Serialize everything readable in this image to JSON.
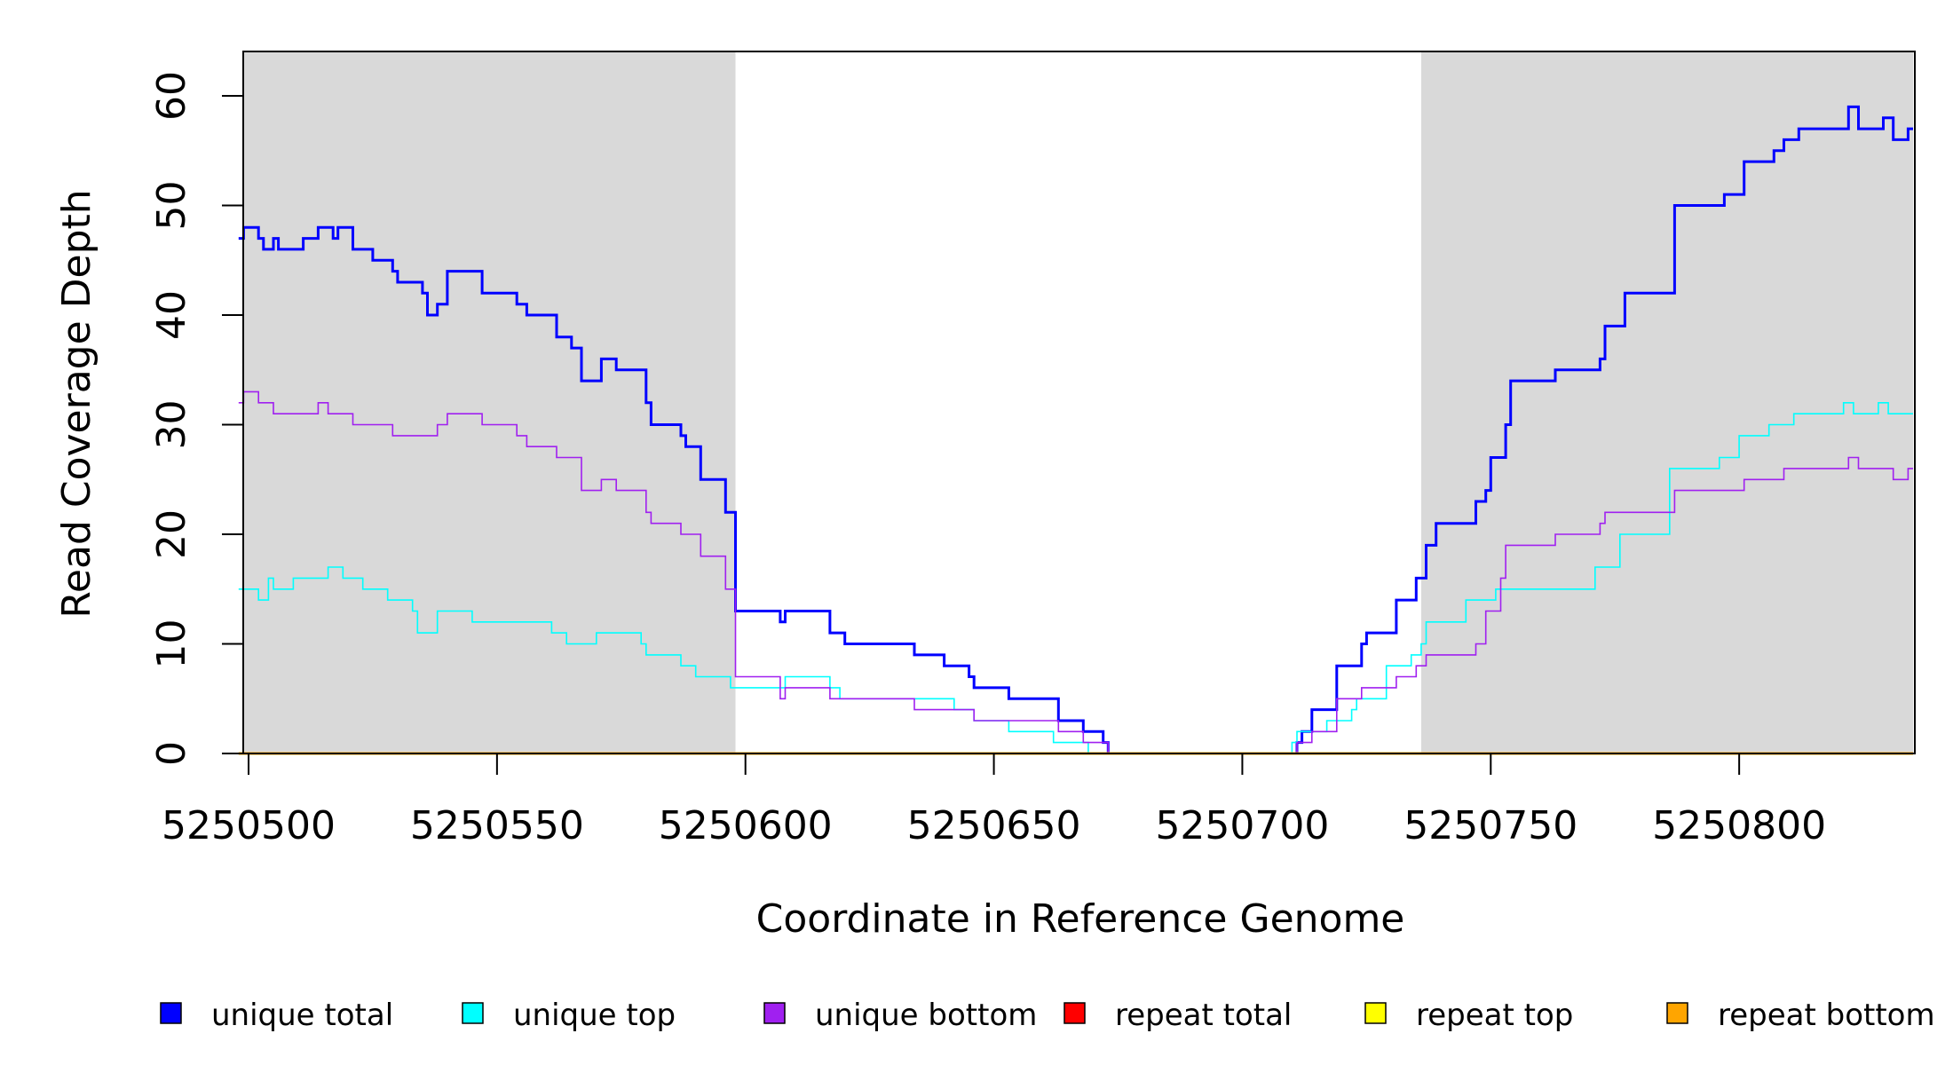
{
  "chart_data": {
    "type": "line",
    "title": "",
    "xlabel": "Coordinate in Reference Genome",
    "ylabel": "Read Coverage Depth",
    "xlim": [
      5250498,
      5250835
    ],
    "ylim": [
      0,
      64
    ],
    "x_ticks": [
      5250500,
      5250550,
      5250600,
      5250650,
      5250700,
      5250750,
      5250800
    ],
    "x_tick_labels": [
      "5250500",
      "5250550",
      "5250600",
      "5250650",
      "5250700",
      "5250750",
      "5250800"
    ],
    "y_ticks": [
      0,
      10,
      20,
      30,
      40,
      50,
      60
    ],
    "y_tick_labels": [
      "0",
      "10",
      "20",
      "30",
      "40",
      "50",
      "60"
    ],
    "grid": false,
    "legend_position": "bottom",
    "shaded_regions": [
      {
        "from": 5250498,
        "to": 5250598,
        "color": "#d9d9d9"
      },
      {
        "from": 5250736,
        "to": 5250835,
        "color": "#d9d9d9"
      }
    ],
    "series": [
      {
        "name": "unique total",
        "color": "#0000ff",
        "width": 3,
        "points": [
          [
            5250498,
            47
          ],
          [
            5250499,
            48
          ],
          [
            5250502,
            47
          ],
          [
            5250503,
            46
          ],
          [
            5250505,
            47
          ],
          [
            5250506,
            46
          ],
          [
            5250511,
            47
          ],
          [
            5250514,
            48
          ],
          [
            5250517,
            47
          ],
          [
            5250518,
            48
          ],
          [
            5250521,
            46
          ],
          [
            5250525,
            45
          ],
          [
            5250529,
            44
          ],
          [
            5250530,
            43
          ],
          [
            5250535,
            42
          ],
          [
            5250536,
            40
          ],
          [
            5250538,
            41
          ],
          [
            5250540,
            44
          ],
          [
            5250547,
            42
          ],
          [
            5250554,
            41
          ],
          [
            5250556,
            40
          ],
          [
            5250562,
            38
          ],
          [
            5250565,
            37
          ],
          [
            5250567,
            34
          ],
          [
            5250571,
            36
          ],
          [
            5250574,
            35
          ],
          [
            5250580,
            32
          ],
          [
            5250581,
            30
          ],
          [
            5250587,
            29
          ],
          [
            5250588,
            28
          ],
          [
            5250591,
            25
          ],
          [
            5250596,
            22
          ],
          [
            5250598,
            13
          ],
          [
            5250607,
            12
          ],
          [
            5250608,
            13
          ],
          [
            5250617,
            11
          ],
          [
            5250620,
            10
          ],
          [
            5250634,
            9
          ],
          [
            5250640,
            8
          ],
          [
            5250645,
            7
          ],
          [
            5250646,
            6
          ],
          [
            5250653,
            5
          ],
          [
            5250663,
            3
          ],
          [
            5250668,
            2
          ],
          [
            5250672,
            1
          ],
          [
            5250673,
            0
          ],
          [
            5250711,
            1
          ],
          [
            5250712,
            2
          ],
          [
            5250714,
            4
          ],
          [
            5250719,
            8
          ],
          [
            5250724,
            10
          ],
          [
            5250725,
            11
          ],
          [
            5250731,
            14
          ],
          [
            5250735,
            16
          ],
          [
            5250737,
            19
          ],
          [
            5250739,
            21
          ],
          [
            5250747,
            23
          ],
          [
            5250749,
            24
          ],
          [
            5250750,
            27
          ],
          [
            5250753,
            30
          ],
          [
            5250754,
            34
          ],
          [
            5250763,
            35
          ],
          [
            5250772,
            36
          ],
          [
            5250773,
            39
          ],
          [
            5250777,
            42
          ],
          [
            5250787,
            50
          ],
          [
            5250797,
            51
          ],
          [
            5250801,
            54
          ],
          [
            5250807,
            55
          ],
          [
            5250809,
            56
          ],
          [
            5250812,
            57
          ],
          [
            5250822,
            59
          ],
          [
            5250824,
            57
          ],
          [
            5250829,
            58
          ],
          [
            5250831,
            56
          ],
          [
            5250834,
            57
          ],
          [
            5250835,
            57
          ]
        ]
      },
      {
        "name": "unique top",
        "color": "#00ffff",
        "width": 1.6,
        "points": [
          [
            5250498,
            15
          ],
          [
            5250502,
            14
          ],
          [
            5250504,
            16
          ],
          [
            5250505,
            15
          ],
          [
            5250509,
            16
          ],
          [
            5250516,
            17
          ],
          [
            5250519,
            16
          ],
          [
            5250523,
            15
          ],
          [
            5250528,
            14
          ],
          [
            5250533,
            13
          ],
          [
            5250534,
            11
          ],
          [
            5250538,
            13
          ],
          [
            5250545,
            12
          ],
          [
            5250561,
            11
          ],
          [
            5250564,
            10
          ],
          [
            5250570,
            11
          ],
          [
            5250579,
            10
          ],
          [
            5250580,
            9
          ],
          [
            5250587,
            8
          ],
          [
            5250590,
            7
          ],
          [
            5250597,
            6
          ],
          [
            5250608,
            7
          ],
          [
            5250617,
            6
          ],
          [
            5250619,
            5
          ],
          [
            5250635,
            5
          ],
          [
            5250642,
            4
          ],
          [
            5250646,
            3
          ],
          [
            5250653,
            2
          ],
          [
            5250662,
            1
          ],
          [
            5250669,
            0
          ],
          [
            5250710,
            1
          ],
          [
            5250711,
            2
          ],
          [
            5250717,
            3
          ],
          [
            5250722,
            4
          ],
          [
            5250723,
            5
          ],
          [
            5250729,
            8
          ],
          [
            5250734,
            9
          ],
          [
            5250736,
            10
          ],
          [
            5250737,
            12
          ],
          [
            5250745,
            14
          ],
          [
            5250751,
            15
          ],
          [
            5250771,
            17
          ],
          [
            5250776,
            20
          ],
          [
            5250786,
            26
          ],
          [
            5250796,
            27
          ],
          [
            5250800,
            29
          ],
          [
            5250806,
            30
          ],
          [
            5250811,
            31
          ],
          [
            5250821,
            32
          ],
          [
            5250823,
            31
          ],
          [
            5250828,
            32
          ],
          [
            5250830,
            31
          ],
          [
            5250835,
            31
          ]
        ]
      },
      {
        "name": "unique bottom",
        "color": "#a020f0",
        "width": 1.6,
        "points": [
          [
            5250498,
            32
          ],
          [
            5250499,
            33
          ],
          [
            5250502,
            32
          ],
          [
            5250505,
            31
          ],
          [
            5250514,
            32
          ],
          [
            5250516,
            31
          ],
          [
            5250521,
            30
          ],
          [
            5250529,
            29
          ],
          [
            5250538,
            30
          ],
          [
            5250540,
            31
          ],
          [
            5250547,
            30
          ],
          [
            5250554,
            29
          ],
          [
            5250556,
            28
          ],
          [
            5250562,
            27
          ],
          [
            5250567,
            24
          ],
          [
            5250571,
            25
          ],
          [
            5250574,
            24
          ],
          [
            5250580,
            22
          ],
          [
            5250581,
            21
          ],
          [
            5250587,
            20
          ],
          [
            5250591,
            18
          ],
          [
            5250596,
            15
          ],
          [
            5250598,
            7
          ],
          [
            5250607,
            5
          ],
          [
            5250608,
            6
          ],
          [
            5250617,
            5
          ],
          [
            5250620,
            5
          ],
          [
            5250634,
            4
          ],
          [
            5250646,
            3
          ],
          [
            5250663,
            2
          ],
          [
            5250668,
            1
          ],
          [
            5250673,
            0
          ],
          [
            5250711,
            1
          ],
          [
            5250712,
            1
          ],
          [
            5250714,
            2
          ],
          [
            5250719,
            5
          ],
          [
            5250724,
            6
          ],
          [
            5250731,
            7
          ],
          [
            5250735,
            8
          ],
          [
            5250737,
            9
          ],
          [
            5250747,
            10
          ],
          [
            5250749,
            13
          ],
          [
            5250752,
            16
          ],
          [
            5250753,
            19
          ],
          [
            5250763,
            20
          ],
          [
            5250772,
            21
          ],
          [
            5250773,
            22
          ],
          [
            5250787,
            24
          ],
          [
            5250801,
            25
          ],
          [
            5250809,
            26
          ],
          [
            5250822,
            27
          ],
          [
            5250824,
            26
          ],
          [
            5250831,
            25
          ],
          [
            5250834,
            26
          ],
          [
            5250835,
            26
          ]
        ]
      },
      {
        "name": "repeat total",
        "color": "#ff0000",
        "width": 2,
        "points": [
          [
            5250498,
            0
          ],
          [
            5250835,
            0
          ]
        ]
      },
      {
        "name": "repeat top",
        "color": "#ffff00",
        "width": 2,
        "points": [
          [
            5250498,
            0
          ],
          [
            5250835,
            0
          ]
        ]
      },
      {
        "name": "repeat bottom",
        "color": "#ffa500",
        "width": 3,
        "points": [
          [
            5250498,
            0
          ],
          [
            5250835,
            0
          ]
        ]
      }
    ],
    "legend": [
      {
        "label": "unique total",
        "color": "#0000ff"
      },
      {
        "label": "unique top",
        "color": "#00ffff"
      },
      {
        "label": "unique bottom",
        "color": "#a020f0"
      },
      {
        "label": "repeat total",
        "color": "#ff0000"
      },
      {
        "label": "repeat top",
        "color": "#ffff00"
      },
      {
        "label": "repeat bottom",
        "color": "#ffa500"
      }
    ]
  }
}
